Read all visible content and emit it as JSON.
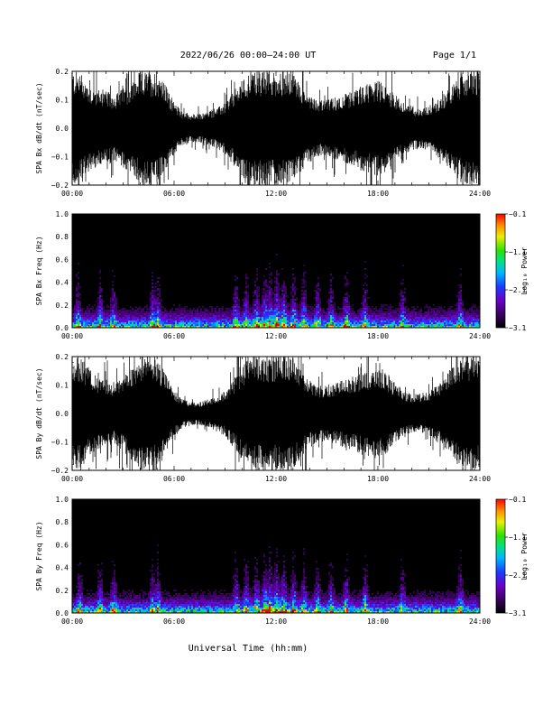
{
  "header": {
    "title": "2022/06/26  00:00—24:00 UT",
    "page": "Page 1/1"
  },
  "xtitle": "Universal Time (hh:mm)",
  "chart_data": [
    {
      "type": "line",
      "ylabel": "SPA Bx dB/dt (nT/sec)",
      "xlim": [
        0,
        24
      ],
      "ylim": [
        -0.2,
        0.2
      ],
      "yticks": [
        "0.2",
        "0.1",
        "0.0",
        "−0.1",
        "−0.2"
      ],
      "xticks": [
        "00:00",
        "06:00",
        "12:00",
        "18:00",
        "24:00"
      ],
      "envelope": {
        "hours": [
          0,
          0.5,
          1,
          1.5,
          2,
          2.5,
          3,
          3.5,
          4,
          4.5,
          5,
          5.5,
          6,
          6.5,
          7,
          7.5,
          8,
          8.5,
          9,
          9.5,
          10,
          10.5,
          11,
          11.5,
          12,
          12.5,
          13,
          13.5,
          14,
          14.5,
          15,
          15.5,
          16,
          16.5,
          17,
          17.5,
          18,
          18.5,
          19,
          19.5,
          20,
          20.5,
          21,
          21.5,
          22,
          22.5,
          23,
          23.5,
          24
        ],
        "amplitude": [
          0.2,
          0.2,
          0.15,
          0.14,
          0.13,
          0.12,
          0.14,
          0.16,
          0.2,
          0.2,
          0.2,
          0.15,
          0.09,
          0.06,
          0.05,
          0.05,
          0.06,
          0.07,
          0.09,
          0.13,
          0.17,
          0.2,
          0.2,
          0.2,
          0.2,
          0.2,
          0.2,
          0.15,
          0.12,
          0.1,
          0.1,
          0.11,
          0.12,
          0.13,
          0.15,
          0.16,
          0.17,
          0.15,
          0.12,
          0.09,
          0.08,
          0.07,
          0.08,
          0.1,
          0.13,
          0.16,
          0.2,
          0.2,
          0.2
        ]
      }
    },
    {
      "type": "heatmap",
      "ylabel": "SPA Bx Freq (Hz)",
      "xlim": [
        0,
        24
      ],
      "ylim": [
        0.0,
        1.0
      ],
      "yticks": [
        "1.0",
        "0.8",
        "0.6",
        "0.4",
        "0.2",
        "0.0"
      ],
      "xticks": [
        "00:00",
        "06:00",
        "12:00",
        "18:00",
        "24:00"
      ],
      "colorbar": {
        "label": "Log₁₀ Power",
        "ticks": [
          "−0.1",
          "−1.1",
          "−2.1",
          "−3.1"
        ],
        "range": [
          -3.1,
          -0.1
        ]
      },
      "bursts_hours": [
        0.3,
        1.6,
        2.4,
        4.7,
        5.0,
        9.6,
        10.2,
        10.8,
        11.3,
        11.6,
        12.0,
        12.4,
        13.0,
        13.6,
        14.4,
        15.2,
        16.1,
        17.2,
        19.4,
        22.8
      ]
    },
    {
      "type": "line",
      "ylabel": "SPA By dB/dt (nT/sec)",
      "xlim": [
        0,
        24
      ],
      "ylim": [
        -0.2,
        0.2
      ],
      "yticks": [
        "0.2",
        "0.1",
        "0.0",
        "−0.1",
        "−0.2"
      ],
      "xticks": [
        "00:00",
        "06:00",
        "12:00",
        "18:00",
        "24:00"
      ],
      "envelope": {
        "hours": [
          0,
          0.5,
          1,
          1.5,
          2,
          2.5,
          3,
          3.5,
          4,
          4.5,
          5,
          5.5,
          6,
          6.5,
          7,
          7.5,
          8,
          8.5,
          9,
          9.5,
          10,
          10.5,
          11,
          11.5,
          12,
          12.5,
          13,
          13.5,
          14,
          14.5,
          15,
          15.5,
          16,
          16.5,
          17,
          17.5,
          18,
          18.5,
          19,
          19.5,
          20,
          20.5,
          21,
          21.5,
          22,
          22.5,
          23,
          23.5,
          24
        ],
        "amplitude": [
          0.2,
          0.2,
          0.16,
          0.13,
          0.12,
          0.11,
          0.13,
          0.17,
          0.2,
          0.2,
          0.2,
          0.14,
          0.08,
          0.05,
          0.04,
          0.04,
          0.05,
          0.06,
          0.08,
          0.12,
          0.17,
          0.2,
          0.2,
          0.2,
          0.2,
          0.2,
          0.2,
          0.15,
          0.12,
          0.1,
          0.1,
          0.11,
          0.12,
          0.13,
          0.14,
          0.15,
          0.16,
          0.14,
          0.11,
          0.08,
          0.07,
          0.07,
          0.08,
          0.1,
          0.14,
          0.17,
          0.2,
          0.2,
          0.2
        ]
      }
    },
    {
      "type": "heatmap",
      "ylabel": "SPA By Freq (Hz)",
      "xlim": [
        0,
        24
      ],
      "ylim": [
        0.0,
        1.0
      ],
      "yticks": [
        "1.0",
        "0.8",
        "0.6",
        "0.4",
        "0.2",
        "0.0"
      ],
      "xticks": [
        "00:00",
        "06:00",
        "12:00",
        "18:00",
        "24:00"
      ],
      "colorbar": {
        "label": "Log₁₀ Power",
        "ticks": [
          "−0.1",
          "−1.1",
          "−2.1",
          "−3.1"
        ],
        "range": [
          -3.1,
          -0.1
        ]
      },
      "bursts_hours": [
        0.4,
        1.6,
        2.4,
        4.7,
        5.0,
        9.6,
        10.2,
        10.8,
        11.3,
        11.6,
        12.0,
        12.4,
        13.0,
        13.6,
        14.4,
        15.2,
        16.1,
        17.2,
        19.4,
        22.8
      ]
    }
  ]
}
